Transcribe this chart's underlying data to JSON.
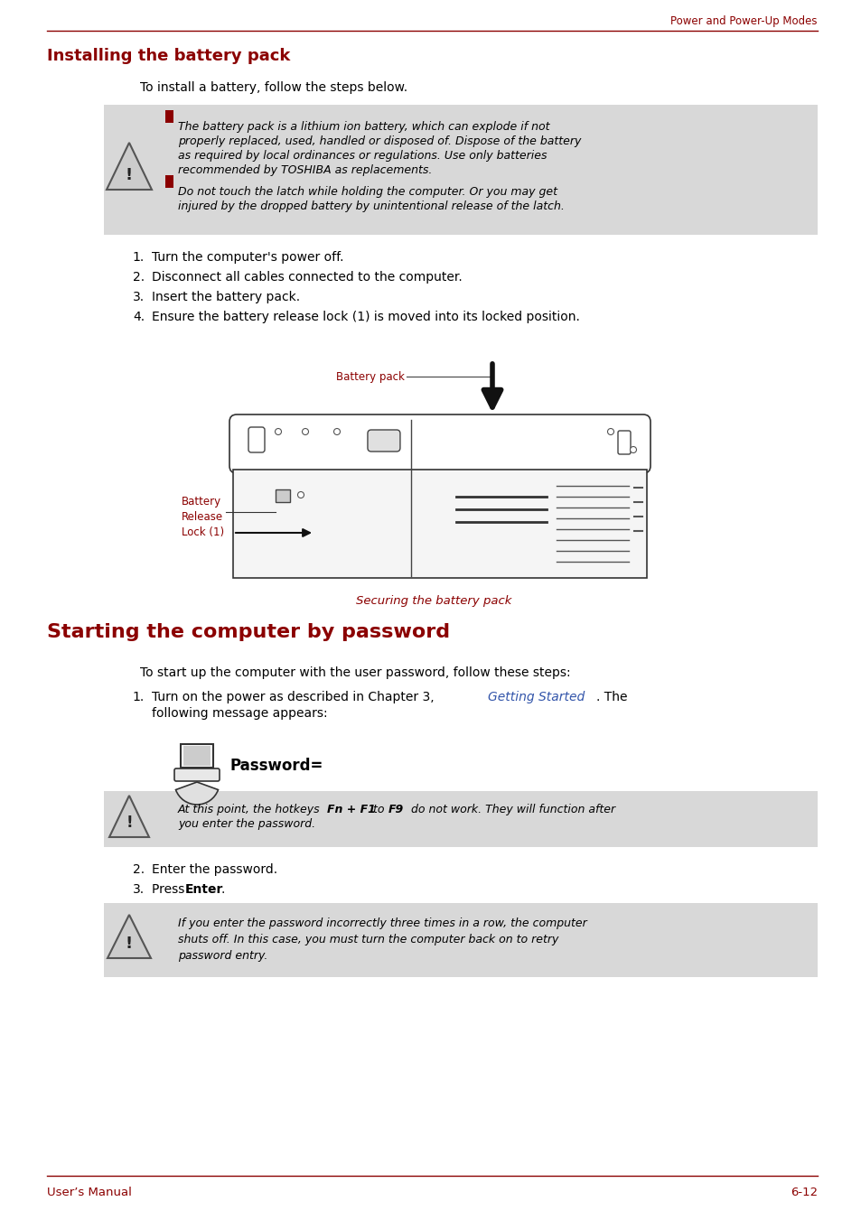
{
  "page_header": "Power and Power-Up Modes",
  "header_line_color": "#8B0000",
  "header_text_color": "#8B0000",
  "section1_title": "Installing the battery pack",
  "section1_title_color": "#8B0000",
  "section1_intro": "To install a battery, follow the steps below.",
  "warning1_lines": [
    "The battery pack is a lithium ion battery, which can explode if not",
    "properly replaced, used, handled or disposed of. Dispose of the battery",
    "as required by local ordinances or regulations. Use only batteries",
    "recommended by TOSHIBA as replacements."
  ],
  "warning2_lines": [
    "Do not touch the latch while holding the computer. Or you may get",
    "injured by the dropped battery by unintentional release of the latch."
  ],
  "steps1": [
    "Turn the computer's power off.",
    "Disconnect all cables connected to the computer.",
    "Insert the battery pack.",
    "Ensure the battery release lock (1) is moved into its locked position."
  ],
  "battery_pack_label": "Battery pack",
  "battery_release_label": "Battery\nRelease\nLock (1)",
  "figure_caption": "Securing the battery pack",
  "section2_title": "Starting the computer by password",
  "section2_title_color": "#8B0000",
  "section2_intro": "To start up the computer with the user password, follow these steps:",
  "password_label": "Password=",
  "warning3_lines": [
    "At this point, the hotkeys Fn + F1 to F9 do not work. They will function after",
    "you enter the password."
  ],
  "warning4_lines": [
    "If you enter the password incorrectly three times in a row, the computer",
    "shuts off. In this case, you must turn the computer back on to retry",
    "password entry."
  ],
  "footer_left": "User’s Manual",
  "footer_right": "6-12",
  "footer_color": "#8B0000",
  "bg_color": "#ffffff",
  "text_color": "#000000",
  "warning_bg": "#d8d8d8",
  "warning_red": "#8B0000",
  "link_color": "#3355aa"
}
